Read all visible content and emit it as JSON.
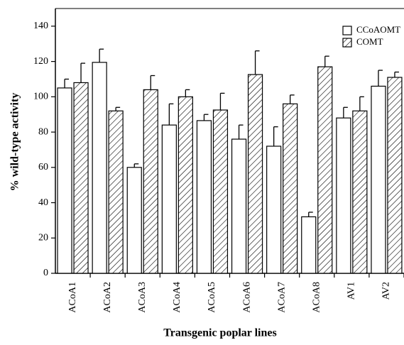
{
  "chart_data": {
    "type": "bar",
    "y_label": "% wild-type activity",
    "x_label": "Transgenic poplar lines",
    "categories": [
      "ACoA1",
      "ACoA2",
      "ACoA3",
      "ACoA4",
      "ACoA5",
      "ACoA6",
      "ACoA7",
      "ACoA8",
      "AV1",
      "AV2"
    ],
    "series": [
      {
        "name": "CCoAOMT",
        "color": "#ffffff",
        "pattern": "none",
        "values": [
          105,
          119.5,
          60,
          84,
          86.5,
          76,
          72,
          32,
          88,
          106
        ],
        "errors": [
          5,
          7.5,
          2,
          12,
          3.5,
          8,
          11,
          2.6,
          6,
          9
        ]
      },
      {
        "name": "COMT",
        "color": "#ffffff",
        "pattern": "hatch",
        "values": [
          108,
          92,
          104,
          100,
          92.5,
          112.6,
          96,
          117,
          92,
          111
        ],
        "errors": [
          11,
          2,
          8,
          4,
          9.5,
          13.4,
          5,
          6,
          8,
          3
        ]
      }
    ],
    "ylim": [
      0,
      150
    ],
    "yticks": [
      0,
      20,
      40,
      60,
      80,
      100,
      120,
      140
    ]
  }
}
